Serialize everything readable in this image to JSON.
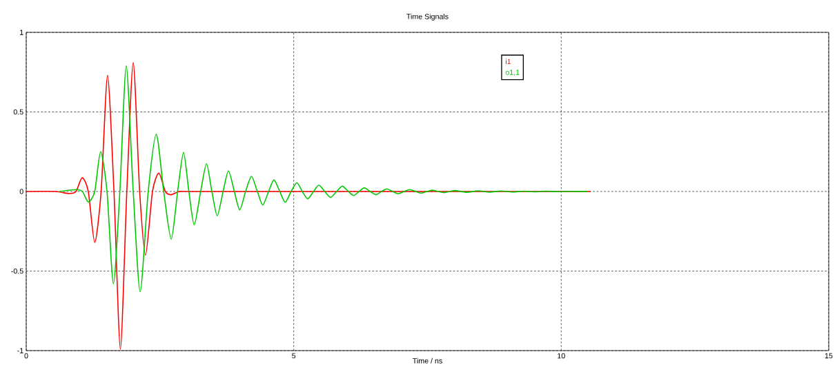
{
  "chart_data": {
    "type": "line",
    "title": "Time Signals",
    "xlabel": "Time / ns",
    "xlim": [
      0,
      15
    ],
    "xticks": [
      0,
      5,
      10,
      15
    ],
    "ylim": [
      -1,
      1
    ],
    "yticks": [
      -1,
      -0.5,
      0,
      0.5,
      1
    ],
    "grid": true,
    "legend": "top right",
    "marker": "none",
    "line_style": "solid",
    "series": [
      {
        "name": "i1",
        "color": "#ff0000",
        "x": [
          0,
          0.54,
          0.8,
          0.93,
          1.045,
          1.16,
          1.28,
          1.4,
          1.52,
          1.64,
          1.76,
          1.88,
          2.0,
          2.12,
          2.23,
          2.36,
          2.48,
          2.6,
          2.71,
          2.86,
          3.1,
          5,
          10.55
        ],
        "values": [
          0,
          0,
          -0.013,
          0,
          0.086,
          0,
          -0.32,
          0,
          0.73,
          0,
          -0.99,
          0,
          0.81,
          0,
          -0.4,
          0,
          0.115,
          0,
          -0.02,
          0,
          0,
          0,
          0
        ]
      },
      {
        "name": "o1,1",
        "color": "#00c800",
        "x": [
          0.62,
          0.93,
          1.05,
          1.16,
          1.28,
          1.39,
          1.51,
          1.63,
          1.75,
          1.87,
          2.0,
          2.13,
          2.28,
          2.43,
          2.57,
          2.71,
          2.83,
          2.94,
          3.04,
          3.14,
          3.26,
          3.37,
          3.47,
          3.57,
          3.68,
          3.78,
          3.89,
          3.99,
          4.1,
          4.21,
          4.32,
          4.42,
          4.53,
          4.63,
          4.74,
          4.84,
          4.95,
          5.06,
          5.16,
          5.26,
          5.37,
          5.47,
          5.58,
          5.69,
          5.8,
          5.91,
          6.02,
          6.12,
          6.22,
          6.32,
          6.43,
          6.54,
          6.64,
          6.74,
          6.85,
          6.95,
          7.06,
          7.17,
          7.28,
          7.38,
          7.49,
          7.59,
          7.7,
          7.81,
          7.92,
          8.02,
          8.23,
          8.45,
          8.66,
          8.87,
          9.09,
          9.3,
          9.51,
          9.72,
          9.94,
          10.15,
          10.5
        ],
        "values": [
          0,
          0.012,
          0,
          -0.066,
          0,
          0.25,
          0,
          -0.58,
          0,
          0.79,
          0,
          -0.63,
          0,
          0.36,
          0,
          -0.3,
          0,
          0.245,
          0,
          -0.21,
          0,
          0.174,
          0,
          -0.152,
          0,
          0.13,
          0,
          -0.116,
          0,
          0.095,
          0,
          -0.085,
          0,
          0.073,
          0,
          -0.068,
          0,
          0.055,
          0,
          -0.046,
          0,
          0.04,
          0,
          -0.037,
          0,
          0.033,
          0,
          -0.025,
          0,
          0.023,
          0,
          -0.02,
          0,
          0.016,
          0,
          -0.014,
          0,
          0.012,
          0,
          -0.01,
          0,
          0.008,
          0,
          -0.007,
          0,
          0.006,
          -0.005,
          0.004,
          -0.004,
          0.003,
          -0.003,
          0.002,
          -0.002,
          0.002,
          -0.001,
          0.001,
          0
        ]
      }
    ]
  }
}
